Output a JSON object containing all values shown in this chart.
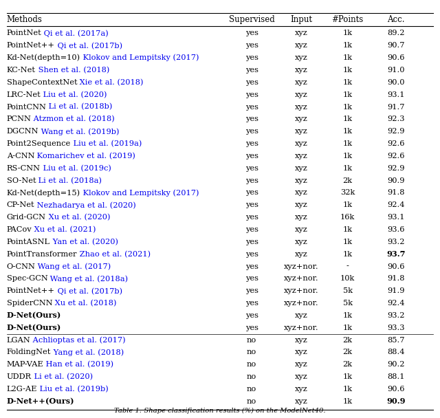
{
  "caption": "Table 1: Shape classification results (%) on the ModelNet40.",
  "header": [
    "Methods",
    "Supervised",
    "Input",
    "#Points",
    "Acc."
  ],
  "rows": [
    {
      "method_black": "PointNet",
      "method_blue": " Qi et al. (2017a)",
      "supervised": "yes",
      "input": "xyz",
      "points": "1k",
      "acc": "89.2",
      "bold_acc": false,
      "bold_method": false,
      "separator_above": false
    },
    {
      "method_black": "PointNet++",
      "method_blue": " Qi et al. (2017b)",
      "supervised": "yes",
      "input": "xyz",
      "points": "1k",
      "acc": "90.7",
      "bold_acc": false,
      "bold_method": false,
      "separator_above": false
    },
    {
      "method_black": "Kd-Net(depth=10)",
      "method_blue": " Klokov and Lempitsky (2017)",
      "supervised": "yes",
      "input": "xyz",
      "points": "1k",
      "acc": "90.6",
      "bold_acc": false,
      "bold_method": false,
      "separator_above": false
    },
    {
      "method_black": "KC-Net",
      "method_blue": " Shen et al. (2018)",
      "supervised": "yes",
      "input": "xyz",
      "points": "1k",
      "acc": "91.0",
      "bold_acc": false,
      "bold_method": false,
      "separator_above": false
    },
    {
      "method_black": "ShapeContextNet",
      "method_blue": " Xie et al. (2018)",
      "supervised": "yes",
      "input": "xyz",
      "points": "1k",
      "acc": "90.0",
      "bold_acc": false,
      "bold_method": false,
      "separator_above": false
    },
    {
      "method_black": "LRC-Net",
      "method_blue": " Liu et al. (2020)",
      "supervised": "yes",
      "input": "xyz",
      "points": "1k",
      "acc": "93.1",
      "bold_acc": false,
      "bold_method": false,
      "separator_above": false
    },
    {
      "method_black": "PointCNN",
      "method_blue": " Li et al. (2018b)",
      "supervised": "yes",
      "input": "xyz",
      "points": "1k",
      "acc": "91.7",
      "bold_acc": false,
      "bold_method": false,
      "separator_above": false
    },
    {
      "method_black": "PCNN",
      "method_blue": " Atzmon et al. (2018)",
      "supervised": "yes",
      "input": "xyz",
      "points": "1k",
      "acc": "92.3",
      "bold_acc": false,
      "bold_method": false,
      "separator_above": false
    },
    {
      "method_black": "DGCNN",
      "method_blue": " Wang et al. (2019b)",
      "supervised": "yes",
      "input": "xyz",
      "points": "1k",
      "acc": "92.9",
      "bold_acc": false,
      "bold_method": false,
      "separator_above": false
    },
    {
      "method_black": "Point2Sequence",
      "method_blue": " Liu et al. (2019a)",
      "supervised": "yes",
      "input": "xyz",
      "points": "1k",
      "acc": "92.6",
      "bold_acc": false,
      "bold_method": false,
      "separator_above": false
    },
    {
      "method_black": "A-CNN",
      "method_blue": " Komarichev et al. (2019)",
      "supervised": "yes",
      "input": "xyz",
      "points": "1k",
      "acc": "92.6",
      "bold_acc": false,
      "bold_method": false,
      "separator_above": false
    },
    {
      "method_black": "RS-CNN",
      "method_blue": " Liu et al. (2019c)",
      "supervised": "yes",
      "input": "xyz",
      "points": "1k",
      "acc": "92.9",
      "bold_acc": false,
      "bold_method": false,
      "separator_above": false
    },
    {
      "method_black": "SO-Net",
      "method_blue": " Li et al. (2018a)",
      "supervised": "yes",
      "input": "xyz",
      "points": "2k",
      "acc": "90.9",
      "bold_acc": false,
      "bold_method": false,
      "separator_above": false
    },
    {
      "method_black": "Kd-Net(depth=15)",
      "method_blue": " Klokov and Lempitsky (2017)",
      "supervised": "yes",
      "input": "xyz",
      "points": "32k",
      "acc": "91.8",
      "bold_acc": false,
      "bold_method": false,
      "separator_above": false
    },
    {
      "method_black": "CP-Net",
      "method_blue": " Nezhadarya et al. (2020)",
      "supervised": "yes",
      "input": "xyz",
      "points": "1k",
      "acc": "92.4",
      "bold_acc": false,
      "bold_method": false,
      "separator_above": false
    },
    {
      "method_black": "Grid-GCN",
      "method_blue": " Xu et al. (2020)",
      "supervised": "yes",
      "input": "xyz",
      "points": "16k",
      "acc": "93.1",
      "bold_acc": false,
      "bold_method": false,
      "separator_above": false
    },
    {
      "method_black": "PACov",
      "method_blue": " Xu et al. (2021)",
      "supervised": "yes",
      "input": "xyz",
      "points": "1k",
      "acc": "93.6",
      "bold_acc": false,
      "bold_method": false,
      "separator_above": false
    },
    {
      "method_black": "PointASNL",
      "method_blue": " Yan et al. (2020)",
      "supervised": "yes",
      "input": "xyz",
      "points": "1k",
      "acc": "93.2",
      "bold_acc": false,
      "bold_method": false,
      "separator_above": false
    },
    {
      "method_black": "PointTransformer",
      "method_blue": " Zhao et al. (2021)",
      "supervised": "yes",
      "input": "xyz",
      "points": "1k",
      "acc": "93.7",
      "bold_acc": true,
      "bold_method": false,
      "separator_above": false
    },
    {
      "method_black": "O-CNN",
      "method_blue": " Wang et al. (2017)",
      "supervised": "yes",
      "input": "xyz+nor.",
      "points": "-",
      "acc": "90.6",
      "bold_acc": false,
      "bold_method": false,
      "separator_above": false
    },
    {
      "method_black": "Spec-GCN",
      "method_blue": " Wang et al. (2018a)",
      "supervised": "yes",
      "input": "xyz+nor.",
      "points": "10k",
      "acc": "91.8",
      "bold_acc": false,
      "bold_method": false,
      "separator_above": false
    },
    {
      "method_black": "PointNet++",
      "method_blue": " Qi et al. (2017b)",
      "supervised": "yes",
      "input": "xyz+nor.",
      "points": "5k",
      "acc": "91.9",
      "bold_acc": false,
      "bold_method": false,
      "separator_above": false
    },
    {
      "method_black": "SpiderCNN",
      "method_blue": " Xu et al. (2018)",
      "supervised": "yes",
      "input": "xyz+nor.",
      "points": "5k",
      "acc": "92.4",
      "bold_acc": false,
      "bold_method": false,
      "separator_above": false
    },
    {
      "method_black": "D-Net(Ours)",
      "method_blue": "",
      "supervised": "yes",
      "input": "xyz",
      "points": "1k",
      "acc": "93.2",
      "bold_acc": false,
      "bold_method": true,
      "separator_above": false
    },
    {
      "method_black": "D-Net(Ours)",
      "method_blue": "",
      "supervised": "yes",
      "input": "xyz+nor.",
      "points": "1k",
      "acc": "93.3",
      "bold_acc": false,
      "bold_method": true,
      "separator_above": false
    },
    {
      "method_black": "LGAN",
      "method_blue": " Achlioptas et al. (2017)",
      "supervised": "no",
      "input": "xyz",
      "points": "2k",
      "acc": "85.7",
      "bold_acc": false,
      "bold_method": false,
      "separator_above": true
    },
    {
      "method_black": "FoldingNet",
      "method_blue": " Yang et al. (2018)",
      "supervised": "no",
      "input": "xyz",
      "points": "2k",
      "acc": "88.4",
      "bold_acc": false,
      "bold_method": false,
      "separator_above": false
    },
    {
      "method_black": "MAP-VAE",
      "method_blue": " Han et al. (2019)",
      "supervised": "no",
      "input": "xyz",
      "points": "2k",
      "acc": "90.2",
      "bold_acc": false,
      "bold_method": false,
      "separator_above": false
    },
    {
      "method_black": "UDDR",
      "method_blue": " Li et al. (2020)",
      "supervised": "no",
      "input": "xyz",
      "points": "1k",
      "acc": "88.1",
      "bold_acc": false,
      "bold_method": false,
      "separator_above": false
    },
    {
      "method_black": "L2G-AE",
      "method_blue": " Liu et al. (2019b)",
      "supervised": "no",
      "input": "xyz",
      "points": "1k",
      "acc": "90.6",
      "bold_acc": false,
      "bold_method": false,
      "separator_above": false
    },
    {
      "method_black": "D-Net++(Ours)",
      "method_blue": "",
      "supervised": "no",
      "input": "xyz",
      "points": "1k",
      "acc": "90.9",
      "bold_acc": true,
      "bold_method": true,
      "separator_above": false
    }
  ],
  "blue_color": "#0000EE",
  "row_fontsize": 8.2,
  "header_fontsize": 8.5,
  "caption_fontsize": 7.2,
  "fig_width": 6.4,
  "fig_height": 6.08
}
